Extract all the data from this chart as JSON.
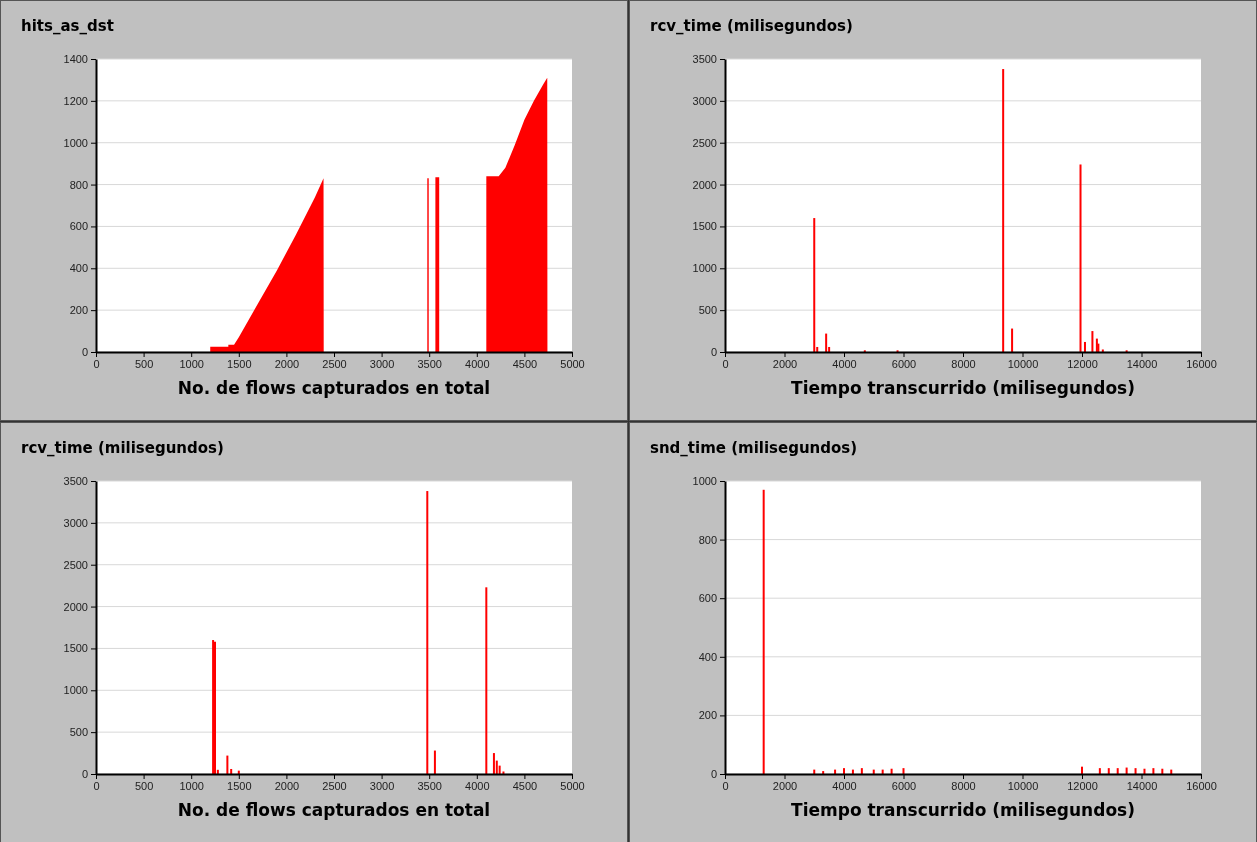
{
  "chart_data": [
    {
      "type": "area",
      "title": "hits_as_dst",
      "xlabel": "No. de flows capturados en total",
      "xlim": [
        0,
        5000
      ],
      "xticks": [
        0,
        500,
        1000,
        1500,
        2000,
        2500,
        3000,
        3500,
        4000,
        4500,
        5000
      ],
      "ylim": [
        0,
        1400
      ],
      "yticks": [
        0,
        200,
        400,
        600,
        800,
        1000,
        1200,
        1400
      ],
      "grid": "y",
      "series": [
        {
          "color": "#ff0000",
          "x": [
            0,
            1200,
            1200,
            1390,
            1390,
            1450,
            1500,
            1700,
            1900,
            2100,
            2300,
            2390,
            2392,
            3480,
            3480,
            3495,
            3495,
            3565,
            3565,
            3605,
            3605,
            4100,
            4100,
            4230,
            4300,
            4400,
            4500,
            4600,
            4700,
            4740,
            4742,
            5000
          ],
          "values": [
            0,
            0,
            25,
            25,
            35,
            35,
            70,
            230,
            390,
            560,
            740,
            830,
            0,
            0,
            830,
            830,
            0,
            0,
            835,
            835,
            0,
            0,
            840,
            840,
            880,
            990,
            1110,
            1200,
            1280,
            1310,
            0,
            0
          ]
        }
      ]
    },
    {
      "type": "bar",
      "title": "rcv_time (milisegundos)",
      "xlabel": "Tiempo transcurrido (milisegundos)",
      "xlim": [
        0,
        16000
      ],
      "xticks": [
        0,
        2000,
        4000,
        6000,
        8000,
        10000,
        12000,
        14000,
        16000
      ],
      "ylim": [
        0,
        3500
      ],
      "yticks": [
        0,
        500,
        1000,
        1500,
        2000,
        2500,
        3000,
        3500
      ],
      "grid": "y",
      "series": [
        {
          "color": "#ff0000",
          "x": [
            3000,
            3100,
            3400,
            3500,
            4700,
            5800,
            9350,
            9650,
            11950,
            12100,
            12350,
            12500,
            12550,
            12700,
            13500
          ],
          "values": [
            1600,
            60,
            220,
            60,
            20,
            20,
            3380,
            280,
            2240,
            120,
            250,
            160,
            100,
            30,
            20
          ]
        }
      ]
    },
    {
      "type": "bar",
      "title": "rcv_time (milisegundos)",
      "xlabel": "No. de flows capturados en total",
      "xlim": [
        0,
        5000
      ],
      "xticks": [
        0,
        500,
        1000,
        1500,
        2000,
        2500,
        3000,
        3500,
        4000,
        4500,
        5000
      ],
      "ylim": [
        0,
        3500
      ],
      "yticks": [
        0,
        500,
        1000,
        1500,
        2000,
        2500,
        3000,
        3500
      ],
      "grid": "y",
      "series": [
        {
          "color": "#ff0000",
          "x": [
            1230,
            1250,
            1280,
            1380,
            1420,
            1500,
            3480,
            3560,
            4100,
            4180,
            4210,
            4240,
            4280
          ],
          "values": [
            1600,
            1580,
            50,
            220,
            60,
            40,
            3380,
            280,
            2230,
            250,
            160,
            100,
            30
          ]
        }
      ]
    },
    {
      "type": "bar",
      "title": "snd_time (milisegundos)",
      "xlabel": "Tiempo transcurrido (milisegundos)",
      "xlim": [
        0,
        16000
      ],
      "xticks": [
        0,
        2000,
        4000,
        6000,
        8000,
        10000,
        12000,
        14000,
        16000
      ],
      "ylim": [
        0,
        1000
      ],
      "yticks": [
        0,
        200,
        400,
        600,
        800,
        1000
      ],
      "grid": "y",
      "series": [
        {
          "color": "#ff0000",
          "x": [
            1300,
            3000,
            3300,
            3700,
            4000,
            4300,
            4600,
            5000,
            5300,
            5600,
            6000,
            12000,
            12600,
            12900,
            13200,
            13500,
            13800,
            14100,
            14400,
            14700,
            15000
          ],
          "values": [
            970,
            15,
            10,
            15,
            20,
            15,
            20,
            15,
            15,
            18,
            20,
            25,
            20,
            20,
            20,
            22,
            20,
            18,
            20,
            18,
            15
          ]
        }
      ]
    }
  ]
}
